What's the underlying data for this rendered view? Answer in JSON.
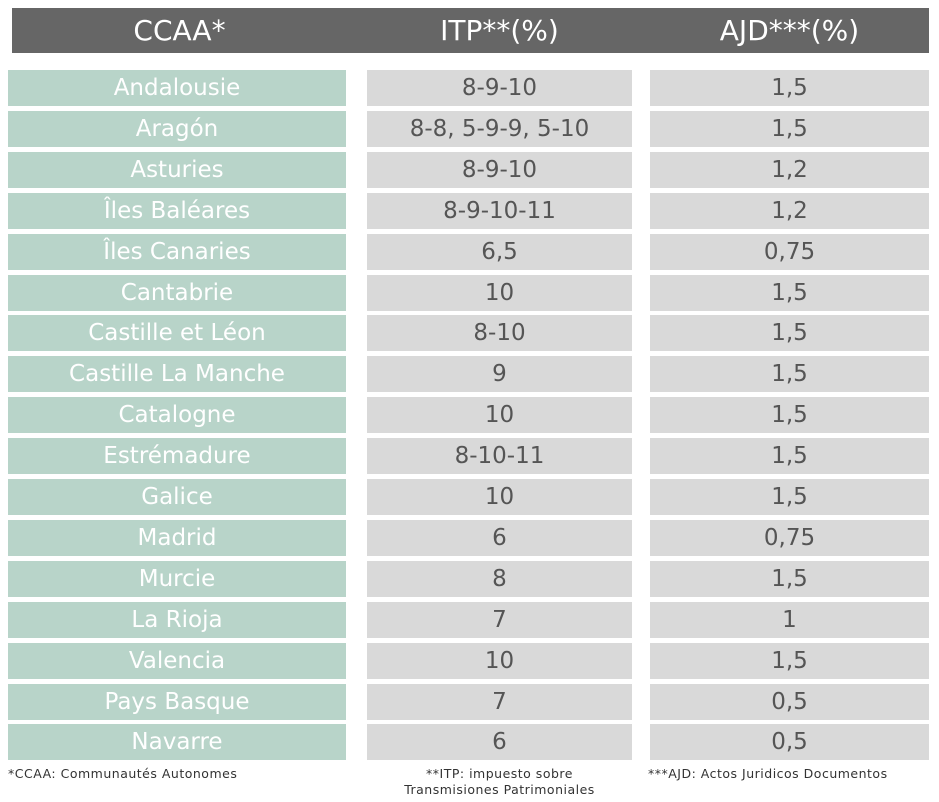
{
  "header": {
    "col1": "CCAA*",
    "col2": "ITP**(%)",
    "col3": "AJD***(%)"
  },
  "rows": [
    {
      "ccaa": "Andalousie",
      "itp": "8-9-10",
      "ajd": "1,5"
    },
    {
      "ccaa": "Aragón",
      "itp": "8-8, 5-9-9, 5-10",
      "ajd": "1,5"
    },
    {
      "ccaa": "Asturies",
      "itp": "8-9-10",
      "ajd": "1,2"
    },
    {
      "ccaa": "Îles Baléares",
      "itp": "8-9-10-11",
      "ajd": "1,2"
    },
    {
      "ccaa": "Îles Canaries",
      "itp": "6,5",
      "ajd": "0,75"
    },
    {
      "ccaa": "Cantabrie",
      "itp": "10",
      "ajd": "1,5"
    },
    {
      "ccaa": "Castille et Léon",
      "itp": "8-10",
      "ajd": "1,5"
    },
    {
      "ccaa": "Castille La Manche",
      "itp": "9",
      "ajd": "1,5"
    },
    {
      "ccaa": "Catalogne",
      "itp": "10",
      "ajd": "1,5"
    },
    {
      "ccaa": "Estrémadure",
      "itp": "8-10-11",
      "ajd": "1,5"
    },
    {
      "ccaa": "Galice",
      "itp": "10",
      "ajd": "1,5"
    },
    {
      "ccaa": "Madrid",
      "itp": "6",
      "ajd": "0,75"
    },
    {
      "ccaa": "Murcie",
      "itp": "8",
      "ajd": "1,5"
    },
    {
      "ccaa": "La Rioja",
      "itp": "7",
      "ajd": "1"
    },
    {
      "ccaa": "Valencia",
      "itp": "10",
      "ajd": "1,5"
    },
    {
      "ccaa": "Pays Basque",
      "itp": "7",
      "ajd": "0,5"
    },
    {
      "ccaa": "Navarre",
      "itp": "6",
      "ajd": "0,5"
    }
  ],
  "footnotes": {
    "ccaa": "*CCAA: Communautés Autonomes",
    "itp_line1": "**ITP: impuesto sobre",
    "itp_line2": "Transmisiones Patrimoniales",
    "ajd": "***AJD: Actos Juridicos Documentos"
  },
  "colors": {
    "header_bg": "#666666",
    "ccaa_cell_bg": "#b8d4c9",
    "value_cell_bg": "#d9d9d9"
  }
}
